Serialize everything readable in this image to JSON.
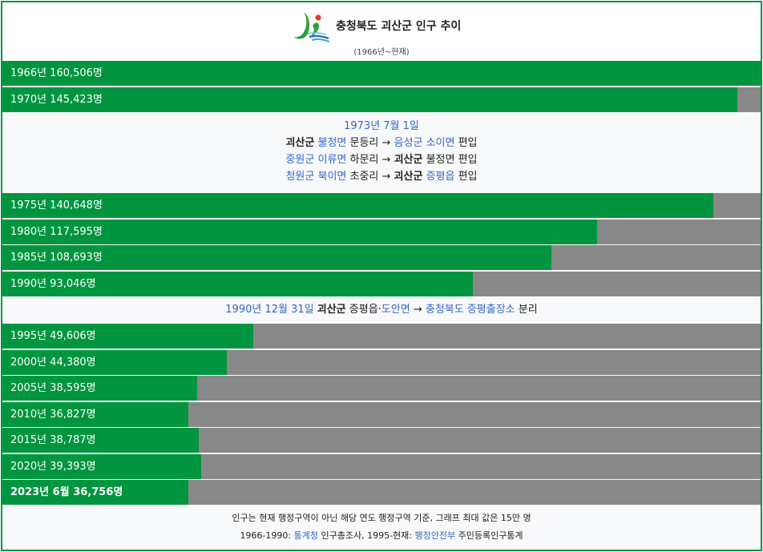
{
  "header": {
    "title": "충청북도 괴산군 인구 추이",
    "subtitle": "(1966년~현재)"
  },
  "chart_data": {
    "type": "bar",
    "orientation": "horizontal",
    "title": "충청북도 괴산군 인구 추이",
    "subtitle": "(1966년~현재)",
    "max": 150000,
    "colors": {
      "bar": "#00953e",
      "track": "#888888"
    },
    "rows": [
      {
        "label": "1966년 160,506명",
        "value": 160506
      },
      {
        "label": "1970년 145,423명",
        "value": 145423
      },
      {
        "label": "1975년 140,648명",
        "value": 140648
      },
      {
        "label": "1980년 117,595명",
        "value": 117595
      },
      {
        "label": "1985년 108,693명",
        "value": 108693
      },
      {
        "label": "1990년 93,046명",
        "value": 93046
      },
      {
        "label": "1995년 49,606명",
        "value": 49606
      },
      {
        "label": "2000년 44,380명",
        "value": 44380
      },
      {
        "label": "2005년 38,595명",
        "value": 38595
      },
      {
        "label": "2010년 36,827명",
        "value": 36827
      },
      {
        "label": "2015년 38,787명",
        "value": 38787
      },
      {
        "label": "2020년 39,393명",
        "value": 39393
      },
      {
        "label": "2023년 6월 36,756명",
        "value": 36756,
        "bold": true
      }
    ]
  },
  "note1973": {
    "date": "1973년 7월 1일",
    "lines": [
      [
        {
          "t": "괴산군",
          "s": "b"
        },
        {
          "t": " "
        },
        {
          "t": "불정면",
          "s": "lnk"
        },
        {
          "t": " 문등리 → "
        },
        {
          "t": "음성군",
          "s": "lnk"
        },
        {
          "t": " "
        },
        {
          "t": "소이면",
          "s": "lnk"
        },
        {
          "t": " 편입"
        }
      ],
      [
        {
          "t": "중원군",
          "s": "lnk"
        },
        {
          "t": " "
        },
        {
          "t": "이류면",
          "s": "lnk"
        },
        {
          "t": " 하문리 → "
        },
        {
          "t": "괴산군",
          "s": "b"
        },
        {
          "t": " 불정면 편입"
        }
      ],
      [
        {
          "t": "청원군",
          "s": "lnk"
        },
        {
          "t": " "
        },
        {
          "t": "북이면",
          "s": "lnk"
        },
        {
          "t": " 초중리 → "
        },
        {
          "t": "괴산군",
          "s": "b"
        },
        {
          "t": " "
        },
        {
          "t": "증평읍",
          "s": "lnk"
        },
        {
          "t": " 편입"
        }
      ]
    ]
  },
  "note1990": {
    "line": [
      {
        "t": "1990년",
        "s": "lnk"
      },
      {
        "t": " "
      },
      {
        "t": "12월 31일",
        "s": "lnk"
      },
      {
        "t": " "
      },
      {
        "t": "괴산군",
        "s": "b"
      },
      {
        "t": " 증평읍·"
      },
      {
        "t": "도안면",
        "s": "lnk"
      },
      {
        "t": " → "
      },
      {
        "t": "충청북도",
        "s": "lnk"
      },
      {
        "t": " "
      },
      {
        "t": "증평출장소",
        "s": "lnk"
      },
      {
        "t": " 분리"
      }
    ]
  },
  "footer": {
    "line1": "인구는 현재 행정구역이 아닌 해당 연도 행정구역 기준, 그래프 최대 값은 15만 명",
    "line2": [
      {
        "t": "1966-1990: "
      },
      {
        "t": "통계청",
        "s": "lnk"
      },
      {
        "t": " 인구총조사, 1995-현재: "
      },
      {
        "t": "행정안전부",
        "s": "lnk"
      },
      {
        "t": " 주민등록인구통계"
      }
    ]
  }
}
